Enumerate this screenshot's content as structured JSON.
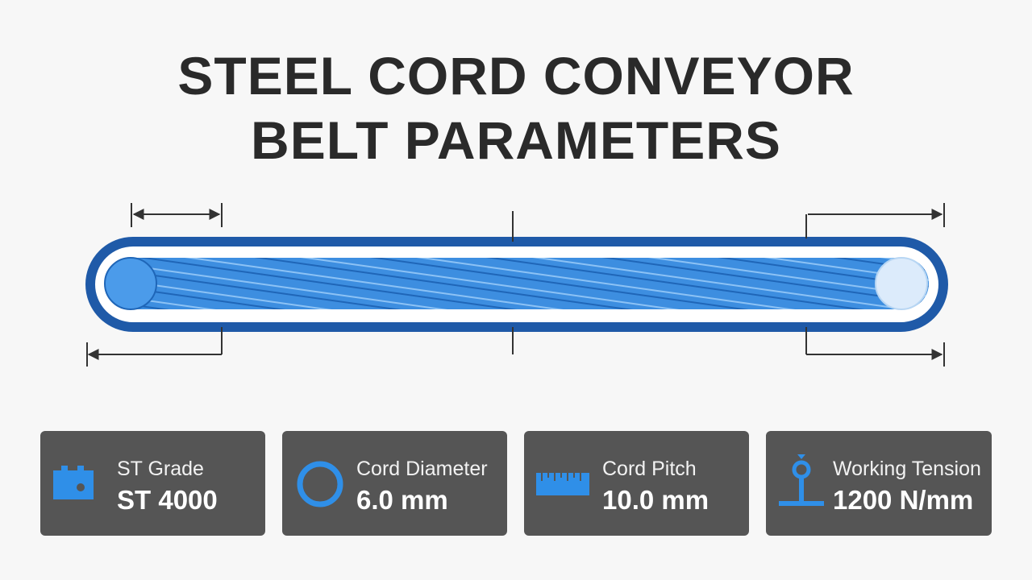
{
  "header": {
    "title_lines": [
      "STEEL CORD CONVEYOR",
      "BELT PARAMETERS"
    ]
  },
  "cards": [
    {
      "label": "ST Grade",
      "value": "ST 4000"
    },
    {
      "label": "Cord Diameter",
      "value": "6.0 mm"
    },
    {
      "label": "Cord Pitch",
      "value": "10.0 mm"
    },
    {
      "label": "Working Tension",
      "value": "1200 N/mm"
    }
  ]
}
